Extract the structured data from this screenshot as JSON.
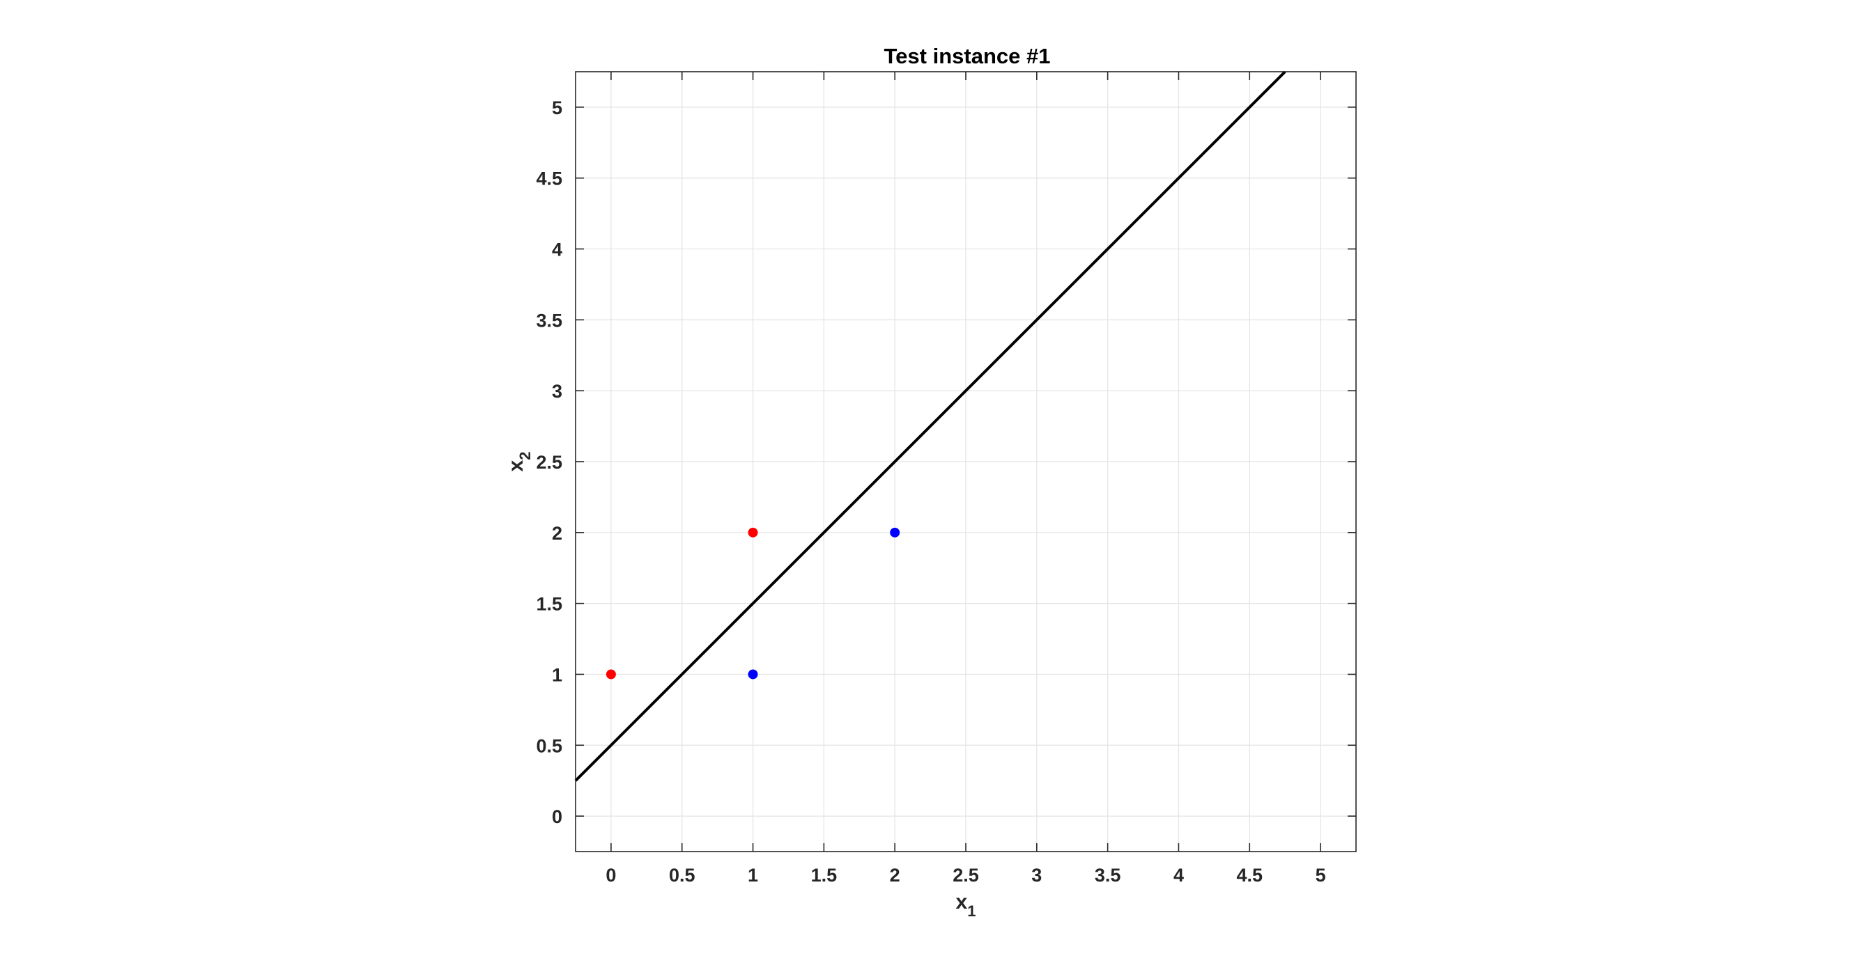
{
  "chart_data": {
    "type": "scatter",
    "title": "Test instance #1",
    "xlabel": {
      "base": "x",
      "subscript": "1"
    },
    "ylabel": {
      "base": "x",
      "subscript": "2"
    },
    "xlim": [
      -0.25,
      5.25
    ],
    "ylim": [
      -0.25,
      5.25
    ],
    "xticks": [
      0,
      0.5,
      1,
      1.5,
      2,
      2.5,
      3,
      3.5,
      4,
      4.5,
      5
    ],
    "yticks": [
      0,
      0.5,
      1,
      1.5,
      2,
      2.5,
      3,
      3.5,
      4,
      4.5,
      5
    ],
    "grid": true,
    "series": [
      {
        "color": "#ff0000",
        "points": [
          {
            "x": 0,
            "y": 1
          },
          {
            "x": 1,
            "y": 2
          }
        ]
      },
      {
        "color": "#0000ff",
        "points": [
          {
            "x": 1,
            "y": 1
          },
          {
            "x": 2,
            "y": 2
          }
        ]
      }
    ],
    "line": {
      "slope": 1,
      "intercept": 0.5,
      "color": "#000000"
    }
  }
}
